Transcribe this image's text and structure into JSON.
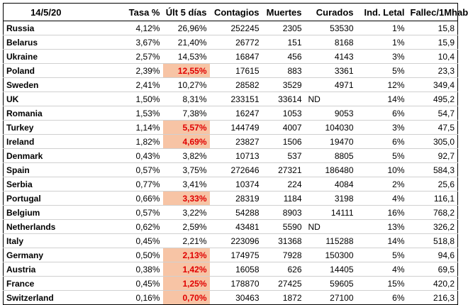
{
  "header": {
    "date": "14/5/20",
    "tasa": "Tasa %",
    "ult5": "Últ 5 días",
    "contagios": "Contagios",
    "muertes": "Muertes",
    "curados": "Curados",
    "ind_letal": "Ind. Letal",
    "fallec": "Fallec/1Mhab"
  },
  "colors": {
    "highlight_bg": "#f7c4a5",
    "highlight_text": "#e00000"
  },
  "rows": [
    {
      "country": "Russia",
      "tasa": "4,12%",
      "ult5": "26,96%",
      "hl": false,
      "contagios": "252245",
      "muertes": "2305",
      "nd": "",
      "curados": "53530",
      "letal": "1%",
      "fallec": "15,8"
    },
    {
      "country": "Belarus",
      "tasa": "3,67%",
      "ult5": "21,40%",
      "hl": false,
      "contagios": "26772",
      "muertes": "151",
      "nd": "",
      "curados": "8168",
      "letal": "1%",
      "fallec": "15,9"
    },
    {
      "country": "Ukraine",
      "tasa": "2,57%",
      "ult5": "14,53%",
      "hl": false,
      "contagios": "16847",
      "muertes": "456",
      "nd": "",
      "curados": "4143",
      "letal": "3%",
      "fallec": "10,4"
    },
    {
      "country": "Poland",
      "tasa": "2,39%",
      "ult5": "12,55%",
      "hl": true,
      "contagios": "17615",
      "muertes": "883",
      "nd": "",
      "curados": "3361",
      "letal": "5%",
      "fallec": "23,3"
    },
    {
      "country": "Sweden",
      "tasa": "2,41%",
      "ult5": "10,27%",
      "hl": false,
      "contagios": "28582",
      "muertes": "3529",
      "nd": "",
      "curados": "4971",
      "letal": "12%",
      "fallec": "349,4"
    },
    {
      "country": "UK",
      "tasa": "1,50%",
      "ult5": "8,31%",
      "hl": false,
      "contagios": "233151",
      "muertes": "33614",
      "nd": "ND",
      "curados": "",
      "letal": "14%",
      "fallec": "495,2"
    },
    {
      "country": "Romania",
      "tasa": "1,53%",
      "ult5": "7,38%",
      "hl": false,
      "contagios": "16247",
      "muertes": "1053",
      "nd": "",
      "curados": "9053",
      "letal": "6%",
      "fallec": "54,7"
    },
    {
      "country": "Turkey",
      "tasa": "1,14%",
      "ult5": "5,57%",
      "hl": true,
      "contagios": "144749",
      "muertes": "4007",
      "nd": "",
      "curados": "104030",
      "letal": "3%",
      "fallec": "47,5"
    },
    {
      "country": "Ireland",
      "tasa": "1,82%",
      "ult5": "4,69%",
      "hl": true,
      "contagios": "23827",
      "muertes": "1506",
      "nd": "",
      "curados": "19470",
      "letal": "6%",
      "fallec": "305,0"
    },
    {
      "country": "Denmark",
      "tasa": "0,43%",
      "ult5": "3,82%",
      "hl": false,
      "contagios": "10713",
      "muertes": "537",
      "nd": "",
      "curados": "8805",
      "letal": "5%",
      "fallec": "92,7"
    },
    {
      "country": "Spain",
      "tasa": "0,57%",
      "ult5": "3,75%",
      "hl": false,
      "contagios": "272646",
      "muertes": "27321",
      "nd": "",
      "curados": "186480",
      "letal": "10%",
      "fallec": "584,3"
    },
    {
      "country": "Serbia",
      "tasa": "0,77%",
      "ult5": "3,41%",
      "hl": false,
      "contagios": "10374",
      "muertes": "224",
      "nd": "",
      "curados": "4084",
      "letal": "2%",
      "fallec": "25,6"
    },
    {
      "country": "Portugal",
      "tasa": "0,66%",
      "ult5": "3,33%",
      "hl": true,
      "contagios": "28319",
      "muertes": "1184",
      "nd": "",
      "curados": "3198",
      "letal": "4%",
      "fallec": "116,1"
    },
    {
      "country": "Belgium",
      "tasa": "0,57%",
      "ult5": "3,22%",
      "hl": false,
      "contagios": "54288",
      "muertes": "8903",
      "nd": "",
      "curados": "14111",
      "letal": "16%",
      "fallec": "768,2"
    },
    {
      "country": "Netherlands",
      "tasa": "0,62%",
      "ult5": "2,59%",
      "hl": false,
      "contagios": "43481",
      "muertes": "5590",
      "nd": "ND",
      "curados": "",
      "letal": "13%",
      "fallec": "326,2"
    },
    {
      "country": "Italy",
      "tasa": "0,45%",
      "ult5": "2,21%",
      "hl": false,
      "contagios": "223096",
      "muertes": "31368",
      "nd": "",
      "curados": "115288",
      "letal": "14%",
      "fallec": "518,8"
    },
    {
      "country": "Germany",
      "tasa": "0,50%",
      "ult5": "2,13%",
      "hl": true,
      "contagios": "174975",
      "muertes": "7928",
      "nd": "",
      "curados": "150300",
      "letal": "5%",
      "fallec": "94,6"
    },
    {
      "country": "Austria",
      "tasa": "0,38%",
      "ult5": "1,42%",
      "hl": true,
      "contagios": "16058",
      "muertes": "626",
      "nd": "",
      "curados": "14405",
      "letal": "4%",
      "fallec": "69,5"
    },
    {
      "country": "France",
      "tasa": "0,45%",
      "ult5": "1,25%",
      "hl": true,
      "contagios": "178870",
      "muertes": "27425",
      "nd": "",
      "curados": "59605",
      "letal": "15%",
      "fallec": "420,2"
    },
    {
      "country": "Switzerland",
      "tasa": "0,16%",
      "ult5": "0,70%",
      "hl": true,
      "contagios": "30463",
      "muertes": "1872",
      "nd": "",
      "curados": "27100",
      "letal": "6%",
      "fallec": "216,3"
    }
  ]
}
